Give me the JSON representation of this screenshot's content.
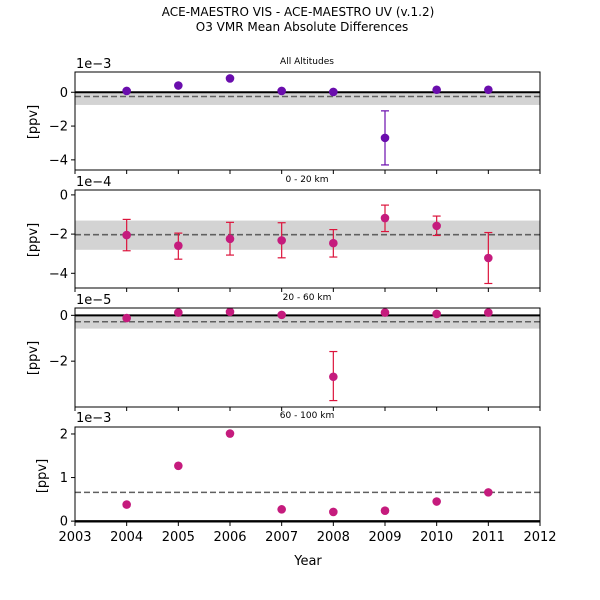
{
  "figure": {
    "title_line1": "ACE-MAESTRO VIS - ACE-MAESTRO UV (v.1.2)",
    "title_line2": "O3 VMR Mean Absolute Differences",
    "xlabel": "Year"
  },
  "colors": {
    "purple_marker": "#6a0dad",
    "pink_marker": "#c51b7d",
    "pink_errorbar": "#dc143c",
    "band": "#d3d3d3",
    "zero_line": "#000000",
    "mean_line": "#606060"
  },
  "chart_data": [
    {
      "type": "scatter",
      "title": "All Altitudes",
      "ylabel": "[ppv]",
      "offset_label": "1e−3",
      "scale": 0.001,
      "xlim": [
        2003,
        2012
      ],
      "ylim": [
        -4.6,
        1.2
      ],
      "yticks": [
        0,
        -2,
        -4
      ],
      "ytick_labels": [
        "0",
        "−2",
        "−4"
      ],
      "mean": -0.00025,
      "band": [
        -0.00075,
        0.0
      ],
      "zero_line": true,
      "marker_color": "purple_marker",
      "errorbar_color": "purple_marker",
      "points": [
        {
          "x": 2004,
          "y": 8e-05
        },
        {
          "x": 2005,
          "y": 0.0004
        },
        {
          "x": 2006,
          "y": 0.00082
        },
        {
          "x": 2007,
          "y": 8e-05
        },
        {
          "x": 2008,
          "y": 2e-05
        },
        {
          "x": 2009,
          "y": -0.0027,
          "err_low": -0.0043,
          "err_high": -0.0011
        },
        {
          "x": 2010,
          "y": 0.00015
        },
        {
          "x": 2011,
          "y": 0.00015
        }
      ]
    },
    {
      "type": "scatter",
      "title": "0 - 20 km",
      "ylabel": "[ppv]",
      "offset_label": "1e−4",
      "scale": 0.0001,
      "xlim": [
        2003,
        2012
      ],
      "ylim": [
        -4.75,
        0.25
      ],
      "yticks": [
        0,
        -2,
        -4
      ],
      "ytick_labels": [
        "0",
        "−2",
        "−4"
      ],
      "mean": -0.000203,
      "band": [
        -0.00028,
        -0.000131
      ],
      "zero_line": false,
      "marker_color": "pink_marker",
      "errorbar_color": "pink_errorbar",
      "points": [
        {
          "x": 2004,
          "y": -0.000205,
          "err_low": -0.000285,
          "err_high": -0.000125
        },
        {
          "x": 2005,
          "y": -0.000259,
          "err_low": -0.000328,
          "err_high": -0.000195
        },
        {
          "x": 2006,
          "y": -0.000224,
          "err_low": -0.000307,
          "err_high": -0.00014
        },
        {
          "x": 2007,
          "y": -0.000232,
          "err_low": -0.000321,
          "err_high": -0.000142
        },
        {
          "x": 2008,
          "y": -0.000246,
          "err_low": -0.000317,
          "err_high": -0.000177
        },
        {
          "x": 2009,
          "y": -0.000118,
          "err_low": -0.000187,
          "err_high": -5.2e-05
        },
        {
          "x": 2010,
          "y": -0.000158,
          "err_low": -0.000207,
          "err_high": -0.000108
        },
        {
          "x": 2011,
          "y": -0.000322,
          "err_low": -0.000452,
          "err_high": -0.000192
        }
      ]
    },
    {
      "type": "scatter",
      "title": "20 - 60 km",
      "ylabel": "[ppv]",
      "offset_label": "1e−5",
      "scale": 1e-05,
      "xlim": [
        2003,
        2012
      ],
      "ylim": [
        -4.0,
        0.32
      ],
      "yticks": [
        0,
        -2
      ],
      "ytick_labels": [
        "0",
        "−2"
      ],
      "mean": -2.8e-06,
      "band": [
        -5.8e-06,
        0.0
      ],
      "zero_line": true,
      "marker_color": "pink_marker",
      "errorbar_color": "pink_errorbar",
      "points": [
        {
          "x": 2004,
          "y": -1.2e-06
        },
        {
          "x": 2005,
          "y": 1.2e-06
        },
        {
          "x": 2006,
          "y": 1.5e-06
        },
        {
          "x": 2007,
          "y": 2e-07
        },
        {
          "x": 2008,
          "y": -2.68e-05,
          "err_low": -3.72e-05,
          "err_high": -1.58e-05
        },
        {
          "x": 2009,
          "y": 1.2e-06
        },
        {
          "x": 2010,
          "y": 6e-07
        },
        {
          "x": 2011,
          "y": 1.2e-06
        }
      ]
    },
    {
      "type": "scatter",
      "title": "60 - 100 km",
      "ylabel": "[ppv]",
      "offset_label": "1e−3",
      "scale": 0.001,
      "xlim": [
        2003,
        2012
      ],
      "ylim": [
        -0.02,
        2.16
      ],
      "yticks": [
        0,
        1,
        2
      ],
      "ytick_labels": [
        "0",
        "1",
        "2"
      ],
      "mean": 0.00066,
      "band": null,
      "zero_line": true,
      "marker_color": "pink_marker",
      "errorbar_color": "pink_errorbar",
      "xticks": [
        2003,
        2004,
        2005,
        2006,
        2007,
        2008,
        2009,
        2010,
        2011,
        2012
      ],
      "xtick_labels": [
        "2003",
        "2004",
        "2005",
        "2006",
        "2007",
        "2008",
        "2009",
        "2010",
        "2011",
        "2012"
      ],
      "points": [
        {
          "x": 2004,
          "y": 0.00038
        },
        {
          "x": 2005,
          "y": 0.00127
        },
        {
          "x": 2006,
          "y": 0.00201
        },
        {
          "x": 2007,
          "y": 0.00027
        },
        {
          "x": 2008,
          "y": 0.00021
        },
        {
          "x": 2009,
          "y": 0.00024
        },
        {
          "x": 2010,
          "y": 0.00045
        },
        {
          "x": 2011,
          "y": 0.00066
        }
      ]
    }
  ]
}
